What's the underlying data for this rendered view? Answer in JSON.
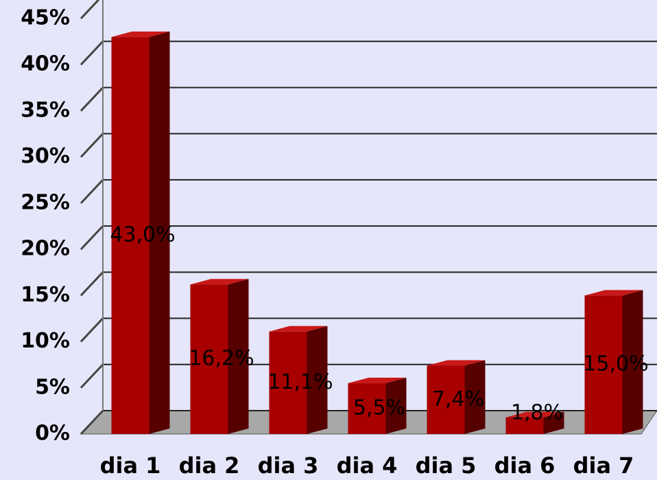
{
  "chart_data": {
    "type": "bar3d",
    "categories": [
      "dia 1",
      "dia 2",
      "dia 3",
      "dia 4",
      "dia 5",
      "dia 6",
      "dia 7"
    ],
    "values": [
      43.0,
      16.2,
      11.1,
      5.5,
      7.4,
      1.8,
      15.0
    ],
    "value_labels": [
      "43,0%",
      "16,2%",
      "11,1%",
      "5,5%",
      "7,4%",
      "1,8%",
      "15,0%"
    ],
    "color": "#a80000",
    "ylim": [
      0,
      45
    ],
    "yticks": [
      {
        "value": 0,
        "label": "0%"
      },
      {
        "value": 5,
        "label": "5%"
      },
      {
        "value": 10,
        "label": "10%"
      },
      {
        "value": 15,
        "label": "15%"
      },
      {
        "value": 20,
        "label": "20%"
      },
      {
        "value": 25,
        "label": "25%"
      },
      {
        "value": 30,
        "label": "30%"
      },
      {
        "value": 35,
        "label": "35%"
      },
      {
        "value": 40,
        "label": "40%"
      },
      {
        "value": 45,
        "label": "45%"
      }
    ],
    "grid": true
  }
}
